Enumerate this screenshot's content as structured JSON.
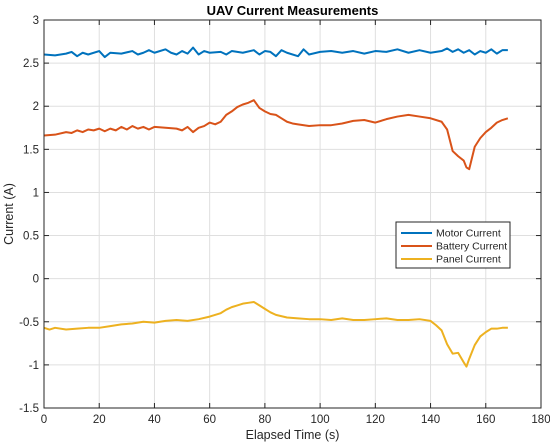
{
  "chart_data": {
    "type": "line",
    "title": "UAV Current Measurements",
    "xlabel": "Elapsed Time (s)",
    "ylabel": "Current (A)",
    "xlim": [
      0,
      180
    ],
    "ylim": [
      -1.5,
      3
    ],
    "xticks": [
      0,
      20,
      40,
      60,
      80,
      100,
      120,
      140,
      160,
      180
    ],
    "yticks": [
      -1.5,
      -1,
      -0.5,
      0,
      0.5,
      1,
      1.5,
      2,
      2.5,
      3
    ],
    "xtick_labels": [
      "0",
      "20",
      "40",
      "60",
      "80",
      "100",
      "120",
      "140",
      "160",
      "180"
    ],
    "ytick_labels": [
      "-1.5",
      "-1",
      "-0.5",
      "0",
      "0.5",
      "1",
      "1.5",
      "2",
      "2.5",
      "3"
    ],
    "grid": true,
    "legend_position": "center-right",
    "series": [
      {
        "name": "Motor Current",
        "color": "#0072BD",
        "x": [
          0,
          4,
          8,
          10,
          12,
          14,
          16,
          20,
          22,
          24,
          28,
          32,
          34,
          36,
          38,
          40,
          44,
          46,
          48,
          50,
          52,
          54,
          56,
          58,
          60,
          64,
          66,
          68,
          72,
          76,
          78,
          80,
          82,
          84,
          86,
          88,
          92,
          94,
          96,
          100,
          104,
          108,
          112,
          116,
          120,
          124,
          128,
          132,
          136,
          140,
          144,
          146,
          148,
          150,
          152,
          154,
          156,
          158,
          160,
          162,
          164,
          166,
          168
        ],
        "y": [
          2.6,
          2.59,
          2.61,
          2.63,
          2.58,
          2.62,
          2.6,
          2.64,
          2.57,
          2.62,
          2.61,
          2.64,
          2.6,
          2.62,
          2.65,
          2.62,
          2.66,
          2.62,
          2.6,
          2.64,
          2.61,
          2.68,
          2.6,
          2.64,
          2.62,
          2.63,
          2.6,
          2.64,
          2.62,
          2.65,
          2.6,
          2.64,
          2.63,
          2.58,
          2.65,
          2.62,
          2.58,
          2.66,
          2.6,
          2.63,
          2.64,
          2.62,
          2.64,
          2.61,
          2.64,
          2.63,
          2.66,
          2.62,
          2.65,
          2.62,
          2.64,
          2.67,
          2.63,
          2.66,
          2.62,
          2.65,
          2.6,
          2.64,
          2.62,
          2.66,
          2.61,
          2.65,
          2.65
        ]
      },
      {
        "name": "Battery Current",
        "color": "#D95319",
        "x": [
          0,
          4,
          8,
          10,
          12,
          14,
          16,
          18,
          20,
          22,
          24,
          26,
          28,
          30,
          32,
          34,
          36,
          38,
          40,
          44,
          48,
          50,
          52,
          54,
          56,
          58,
          60,
          62,
          64,
          66,
          68,
          70,
          72,
          74,
          76,
          78,
          80,
          82,
          84,
          86,
          88,
          90,
          92,
          96,
          100,
          104,
          108,
          112,
          116,
          120,
          124,
          128,
          132,
          136,
          140,
          144,
          146,
          148,
          150,
          152,
          153,
          154,
          156,
          158,
          160,
          162,
          164,
          166,
          168
        ],
        "y": [
          1.66,
          1.67,
          1.7,
          1.69,
          1.72,
          1.7,
          1.73,
          1.72,
          1.74,
          1.71,
          1.74,
          1.72,
          1.76,
          1.73,
          1.77,
          1.74,
          1.76,
          1.73,
          1.76,
          1.75,
          1.74,
          1.72,
          1.76,
          1.7,
          1.75,
          1.77,
          1.81,
          1.79,
          1.82,
          1.9,
          1.94,
          1.99,
          2.02,
          2.04,
          2.07,
          1.98,
          1.94,
          1.91,
          1.9,
          1.86,
          1.82,
          1.8,
          1.79,
          1.77,
          1.78,
          1.78,
          1.8,
          1.83,
          1.84,
          1.81,
          1.85,
          1.88,
          1.9,
          1.88,
          1.86,
          1.82,
          1.73,
          1.48,
          1.42,
          1.37,
          1.29,
          1.27,
          1.53,
          1.63,
          1.7,
          1.75,
          1.81,
          1.84,
          1.86
        ]
      },
      {
        "name": "Panel Current",
        "color": "#EDB120",
        "x": [
          0,
          2,
          4,
          8,
          12,
          16,
          20,
          24,
          28,
          32,
          36,
          40,
          44,
          48,
          52,
          56,
          60,
          64,
          66,
          68,
          70,
          72,
          74,
          76,
          78,
          80,
          82,
          84,
          88,
          92,
          96,
          100,
          104,
          108,
          112,
          116,
          120,
          124,
          128,
          132,
          136,
          140,
          142,
          144,
          146,
          148,
          150,
          152,
          153,
          154,
          156,
          158,
          160,
          162,
          164,
          166,
          168
        ],
        "y": [
          -0.57,
          -0.59,
          -0.57,
          -0.59,
          -0.58,
          -0.57,
          -0.57,
          -0.55,
          -0.53,
          -0.52,
          -0.5,
          -0.51,
          -0.49,
          -0.48,
          -0.49,
          -0.47,
          -0.44,
          -0.4,
          -0.36,
          -0.33,
          -0.31,
          -0.29,
          -0.28,
          -0.27,
          -0.31,
          -0.35,
          -0.39,
          -0.42,
          -0.45,
          -0.46,
          -0.47,
          -0.47,
          -0.48,
          -0.46,
          -0.48,
          -0.48,
          -0.47,
          -0.46,
          -0.48,
          -0.48,
          -0.47,
          -0.49,
          -0.54,
          -0.6,
          -0.76,
          -0.87,
          -0.86,
          -0.97,
          -1.02,
          -0.93,
          -0.77,
          -0.67,
          -0.62,
          -0.58,
          -0.58,
          -0.57,
          -0.57
        ]
      }
    ]
  }
}
